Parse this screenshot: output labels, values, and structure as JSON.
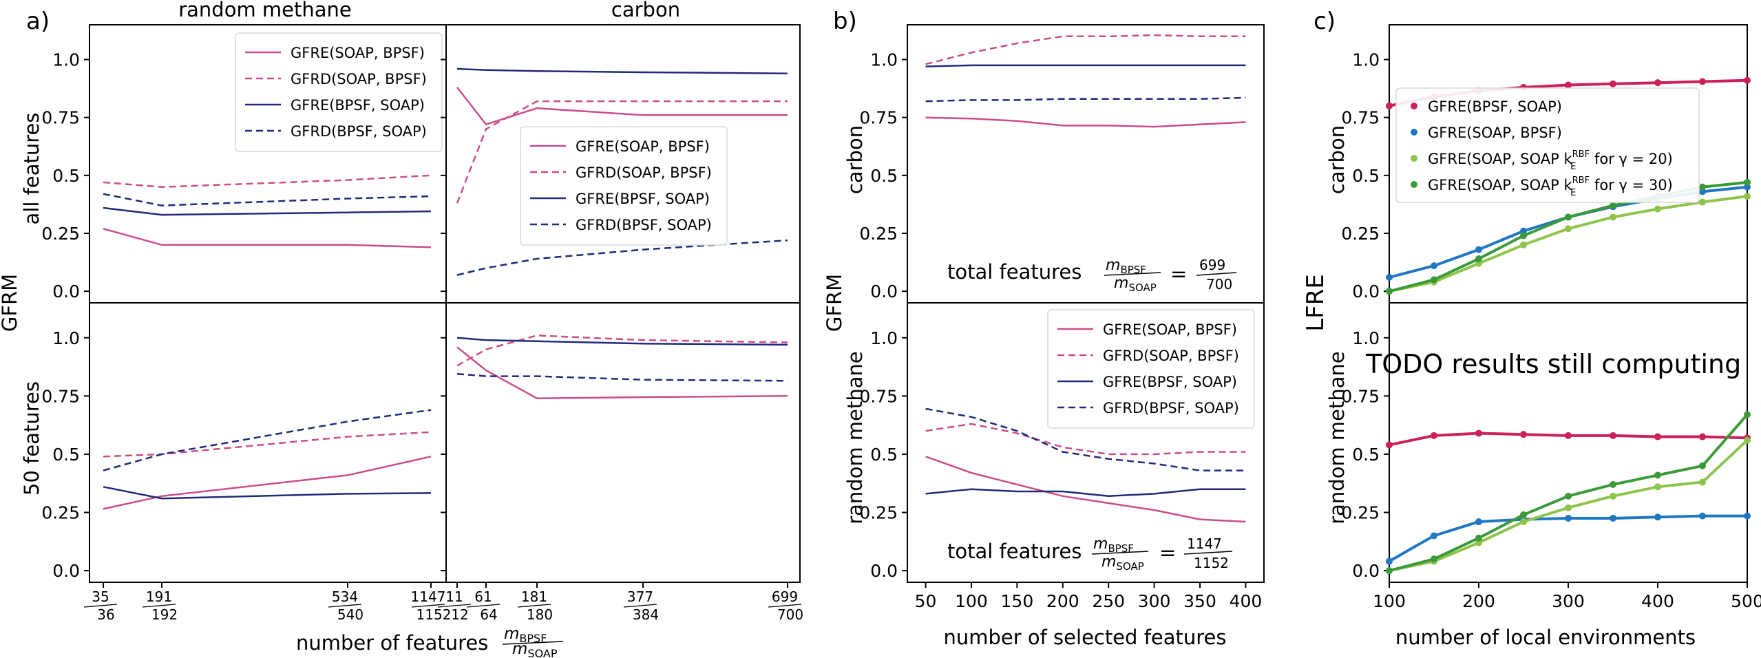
{
  "colors": {
    "pink": "#cc4c88",
    "navy": "#1f2a7a",
    "crimson": "#cc1f5c",
    "blue": "#1f77c4",
    "lightgreen": "#8ec44a",
    "darkgreen": "#3a9a3a"
  },
  "panel_letters": {
    "a": "a)",
    "b": "b)",
    "c": "c)"
  },
  "titles": {
    "random_methane": "random methane",
    "carbon": "carbon"
  },
  "labels": {
    "gfrm": "GFRM",
    "lfre": "LFRE",
    "all_features": "all features",
    "fifty_features": "50 features",
    "carbon": "carbon",
    "random_methane": "random methane",
    "xlabel_a": "number of features",
    "xlabel_b": "number of selected features",
    "xlabel_c": "number of local environments",
    "ratio_num": "m",
    "ratio_num_sub": "BPSF",
    "ratio_den": "m",
    "ratio_den_sub": "SOAP",
    "total_features": "total features",
    "eq": "=",
    "tf_top_num": "699",
    "tf_top_den": "700",
    "tf_bot_num": "1147",
    "tf_bot_den": "1152",
    "todo": "TODO results still computing"
  },
  "legend_a": [
    {
      "label": "GFRE(SOAP, BPSF)",
      "color": "#cc4c88",
      "dash": false
    },
    {
      "label": "GFRD(SOAP, BPSF)",
      "color": "#cc4c88",
      "dash": true
    },
    {
      "label": "GFRE(BPSF, SOAP)",
      "color": "#1f2a7a",
      "dash": false
    },
    {
      "label": "GFRD(BPSF, SOAP)",
      "color": "#1f2a7a",
      "dash": true
    }
  ],
  "legend_c": [
    {
      "label": "GFRE(BPSF, SOAP)",
      "color": "#cc1f5c"
    },
    {
      "label": "GFRE(SOAP, BPSF)",
      "color": "#1f77c4"
    },
    {
      "label": "GFRE(SOAP, SOAP k",
      "sup": "RBF",
      "sub": "E",
      "tail": " for γ = 20)",
      "color": "#8ec44a"
    },
    {
      "label": "GFRE(SOAP, SOAP k",
      "sup": "RBF",
      "sub": "E",
      "tail": " for γ = 30)",
      "color": "#3a9a3a"
    }
  ],
  "chart_data": [
    {
      "id": "a-methane-all",
      "type": "line",
      "title": "random methane",
      "ylabel": "all features",
      "ylim": [
        -0.05,
        1.15
      ],
      "yticks": [
        0.0,
        0.25,
        0.5,
        0.75,
        1.0
      ],
      "x": [
        35,
        191,
        534,
        1147
      ],
      "xtick_labels": [
        [
          "35",
          "36"
        ],
        [
          "191",
          "192"
        ],
        [
          "534",
          "540"
        ],
        [
          "1147",
          "1152"
        ]
      ],
      "series": [
        {
          "name": "GFRE(SOAP, BPSF)",
          "values": [
            0.27,
            0.2,
            0.2,
            0.19
          ]
        },
        {
          "name": "GFRD(SOAP, BPSF)",
          "values": [
            0.47,
            0.45,
            0.48,
            0.5
          ]
        },
        {
          "name": "GFRE(BPSF, SOAP)",
          "values": [
            0.36,
            0.33,
            0.34,
            0.345
          ]
        },
        {
          "name": "GFRD(BPSF, SOAP)",
          "values": [
            0.42,
            0.37,
            0.4,
            0.41
          ]
        }
      ]
    },
    {
      "id": "a-carbon-all",
      "type": "line",
      "title": "carbon",
      "ylim": [
        -0.05,
        1.15
      ],
      "x": [
        11,
        61,
        181,
        377,
        699
      ],
      "xtick_labels": [
        [
          "11",
          "12"
        ],
        [
          "61",
          "64"
        ],
        [
          "181",
          "180"
        ],
        [
          "377",
          "384"
        ],
        [
          "699",
          "700"
        ]
      ],
      "series": [
        {
          "name": "GFRE(SOAP, BPSF)",
          "x": [
            11,
            61,
            181,
            377,
            699
          ],
          "values": [
            0.88,
            0.72,
            0.79,
            0.76,
            0.76
          ]
        },
        {
          "name": "GFRD(SOAP, BPSF)",
          "x": [
            11,
            61,
            181,
            377,
            699
          ],
          "values": [
            0.38,
            0.7,
            0.82,
            0.82,
            0.82
          ]
        },
        {
          "name": "GFRE(BPSF, SOAP)",
          "x": [
            11,
            61,
            181,
            377,
            699
          ],
          "values": [
            0.96,
            0.955,
            0.95,
            0.945,
            0.94
          ]
        },
        {
          "name": "GFRD(BPSF, SOAP)",
          "x": [
            11,
            61,
            181,
            377,
            699
          ],
          "values": [
            0.07,
            0.1,
            0.14,
            0.18,
            0.22
          ]
        }
      ]
    },
    {
      "id": "a-methane-50",
      "type": "line",
      "ylabel": "50 features",
      "ylim": [
        -0.05,
        1.15
      ],
      "yticks": [
        0.0,
        0.25,
        0.5,
        0.75,
        1.0
      ],
      "x": [
        35,
        191,
        534,
        1147
      ],
      "series": [
        {
          "name": "GFRE(SOAP, BPSF)",
          "values": [
            0.265,
            0.32,
            0.41,
            0.49
          ]
        },
        {
          "name": "GFRD(SOAP, BPSF)",
          "values": [
            0.49,
            0.5,
            0.575,
            0.595
          ]
        },
        {
          "name": "GFRE(BPSF, SOAP)",
          "values": [
            0.36,
            0.31,
            0.33,
            0.333
          ]
        },
        {
          "name": "GFRD(BPSF, SOAP)",
          "values": [
            0.43,
            0.5,
            0.64,
            0.69
          ]
        }
      ]
    },
    {
      "id": "a-carbon-50",
      "type": "line",
      "ylim": [
        -0.05,
        1.15
      ],
      "x": [
        11,
        61,
        181,
        377,
        699
      ],
      "series": [
        {
          "name": "GFRE(SOAP, BPSF)",
          "x": [
            11,
            61,
            181,
            377,
            699
          ],
          "values": [
            0.96,
            0.86,
            0.74,
            0.745,
            0.75
          ]
        },
        {
          "name": "GFRD(SOAP, BPSF)",
          "x": [
            11,
            61,
            181,
            377,
            699
          ],
          "values": [
            0.88,
            0.95,
            1.01,
            0.99,
            0.98
          ]
        },
        {
          "name": "GFRE(BPSF, SOAP)",
          "x": [
            11,
            61,
            181,
            377,
            699
          ],
          "values": [
            1.0,
            0.99,
            0.985,
            0.975,
            0.97
          ]
        },
        {
          "name": "GFRD(BPSF, SOAP)",
          "x": [
            11,
            61,
            181,
            377,
            699
          ],
          "values": [
            0.845,
            0.835,
            0.835,
            0.82,
            0.815
          ]
        }
      ]
    },
    {
      "id": "b-carbon",
      "type": "line",
      "ylabel": "carbon",
      "ylim": [
        -0.05,
        1.15
      ],
      "yticks": [
        0.0,
        0.25,
        0.5,
        0.75,
        1.0
      ],
      "x": [
        50,
        100,
        150,
        200,
        250,
        300,
        350,
        400
      ],
      "series": [
        {
          "name": "GFRE(SOAP, BPSF)",
          "values": [
            0.75,
            0.745,
            0.735,
            0.715,
            0.715,
            0.71,
            0.72,
            0.73
          ]
        },
        {
          "name": "GFRD(SOAP, BPSF)",
          "values": [
            0.98,
            1.03,
            1.07,
            1.1,
            1.1,
            1.105,
            1.1,
            1.1
          ]
        },
        {
          "name": "GFRE(BPSF, SOAP)",
          "values": [
            0.97,
            0.975,
            0.975,
            0.975,
            0.975,
            0.975,
            0.975,
            0.975
          ]
        },
        {
          "name": "GFRD(BPSF, SOAP)",
          "values": [
            0.82,
            0.825,
            0.825,
            0.83,
            0.83,
            0.83,
            0.83,
            0.835
          ]
        }
      ]
    },
    {
      "id": "b-methane",
      "type": "line",
      "ylabel": "random methane",
      "xlabel": "number of selected features",
      "ylim": [
        -0.05,
        1.15
      ],
      "yticks": [
        0.0,
        0.25,
        0.5,
        0.75,
        1.0
      ],
      "xticks": [
        50,
        100,
        150,
        200,
        250,
        300,
        350,
        400
      ],
      "x": [
        50,
        100,
        150,
        200,
        250,
        300,
        350,
        400
      ],
      "series": [
        {
          "name": "GFRE(SOAP, BPSF)",
          "values": [
            0.49,
            0.42,
            0.37,
            0.32,
            0.29,
            0.26,
            0.22,
            0.21
          ]
        },
        {
          "name": "GFRD(SOAP, BPSF)",
          "values": [
            0.6,
            0.63,
            0.59,
            0.53,
            0.5,
            0.5,
            0.51,
            0.51
          ]
        },
        {
          "name": "GFRE(BPSF, SOAP)",
          "values": [
            0.33,
            0.35,
            0.34,
            0.34,
            0.32,
            0.33,
            0.35,
            0.35
          ]
        },
        {
          "name": "GFRD(BPSF, SOAP)",
          "values": [
            0.695,
            0.66,
            0.6,
            0.51,
            0.48,
            0.46,
            0.43,
            0.43
          ]
        }
      ]
    },
    {
      "id": "c-carbon",
      "type": "line",
      "ylabel": "carbon",
      "ylim": [
        -0.05,
        1.15
      ],
      "yticks": [
        0.0,
        0.25,
        0.5,
        0.75,
        1.0
      ],
      "x": [
        100,
        150,
        200,
        250,
        300,
        350,
        400,
        450,
        500
      ],
      "series": [
        {
          "name": "GFRE(BPSF, SOAP)",
          "values": [
            0.8,
            0.84,
            0.865,
            0.88,
            0.89,
            0.895,
            0.9,
            0.905,
            0.91
          ]
        },
        {
          "name": "GFRE(SOAP, BPSF)",
          "values": [
            0.06,
            0.11,
            0.18,
            0.26,
            0.32,
            0.365,
            0.4,
            0.43,
            0.45
          ]
        },
        {
          "name": "GFRE(SOAP, SOAP k_E^RBF for γ = 20)",
          "values": [
            0.0,
            0.04,
            0.12,
            0.2,
            0.27,
            0.32,
            0.355,
            0.385,
            0.41
          ]
        },
        {
          "name": "GFRE(SOAP, SOAP k_E^RBF for γ = 30)",
          "values": [
            0.0,
            0.05,
            0.14,
            0.24,
            0.32,
            0.37,
            0.41,
            0.45,
            0.47
          ]
        }
      ]
    },
    {
      "id": "c-methane",
      "type": "line",
      "ylabel": "random methane",
      "xlabel": "number of local environments",
      "ylim": [
        -0.05,
        1.15
      ],
      "yticks": [
        0.0,
        0.25,
        0.5,
        0.75,
        1.0
      ],
      "xticks": [
        100,
        200,
        300,
        400,
        500
      ],
      "x": [
        100,
        150,
        200,
        250,
        300,
        350,
        400,
        450,
        500
      ],
      "series": [
        {
          "name": "GFRE(BPSF, SOAP)",
          "values": [
            0.54,
            0.58,
            0.59,
            0.585,
            0.58,
            0.58,
            0.575,
            0.575,
            0.57
          ]
        },
        {
          "name": "GFRE(SOAP, BPSF)",
          "values": [
            0.04,
            0.15,
            0.21,
            0.22,
            0.225,
            0.225,
            0.23,
            0.235,
            0.235
          ]
        },
        {
          "name": "GFRE(SOAP, SOAP k_E^RBF for γ = 20)",
          "values": [
            0.0,
            0.04,
            0.12,
            0.21,
            0.27,
            0.32,
            0.36,
            0.38,
            0.56
          ]
        },
        {
          "name": "GFRE(SOAP, SOAP k_E^RBF for γ = 30)",
          "values": [
            0.0,
            0.05,
            0.14,
            0.24,
            0.32,
            0.37,
            0.41,
            0.45,
            0.67
          ]
        }
      ]
    }
  ]
}
